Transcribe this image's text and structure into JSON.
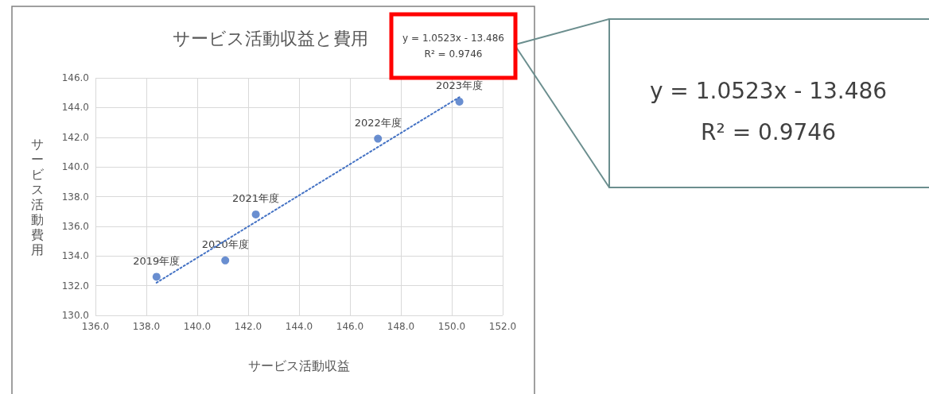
{
  "chart_data": {
    "type": "scatter",
    "title": "サービス活動収益と費用",
    "xlabel": "サービス活動収益",
    "ylabel": "サービス活動費用",
    "series": [
      {
        "color": "#4472c4",
        "x": [
          138.4,
          141.1,
          142.3,
          147.1,
          150.3
        ],
        "values": [
          132.6,
          133.7,
          136.8,
          141.9,
          144.4
        ],
        "marker": "circle"
      },
      {
        "type": "line",
        "color": "#4472c4",
        "x": [
          138.4,
          150.3
        ],
        "values": [
          132.2,
          144.7
        ],
        "marker": "none",
        "line_style": "dotted"
      }
    ],
    "xlim": [
      136,
      152
    ],
    "ylim": [
      130,
      146
    ],
    "xticks": [
      {
        "value": 136,
        "label": "136.0"
      },
      {
        "value": 138,
        "label": "138.0"
      },
      {
        "value": 140,
        "label": "140.0"
      },
      {
        "value": 142,
        "label": "142.0"
      },
      {
        "value": 144,
        "label": "144.0"
      },
      {
        "value": 146,
        "label": "146.0"
      },
      {
        "value": 148,
        "label": "148.0"
      },
      {
        "value": 150,
        "label": "150.0"
      },
      {
        "value": 152,
        "label": "152.0"
      }
    ],
    "yticks": [
      {
        "value": 130,
        "label": "130.0"
      },
      {
        "value": 132,
        "label": "132.0"
      },
      {
        "value": 134,
        "label": "134.0"
      },
      {
        "value": 136,
        "label": "136.0"
      },
      {
        "value": 138,
        "label": "138.0"
      },
      {
        "value": 140,
        "label": "140.0"
      },
      {
        "value": 142,
        "label": "142.0"
      },
      {
        "value": 144,
        "label": "144.0"
      },
      {
        "value": 146,
        "label": "146.0"
      }
    ],
    "grid": true,
    "annotations": [
      {
        "text": "2019年度",
        "x": 138.4,
        "y": 132.6
      },
      {
        "text": "2020年度",
        "x": 141.1,
        "y": 133.7
      },
      {
        "text": "2021年度",
        "x": 142.3,
        "y": 136.8
      },
      {
        "text": "2022年度",
        "x": 147.1,
        "y": 141.9
      },
      {
        "text": "2023年度",
        "x": 150.3,
        "y": 144.4
      },
      "y = 1.0523x - 13.486\nR² = 0.9746",
      "y = 1.0523x - 13.486\nR² = 0.9746"
    ]
  }
}
